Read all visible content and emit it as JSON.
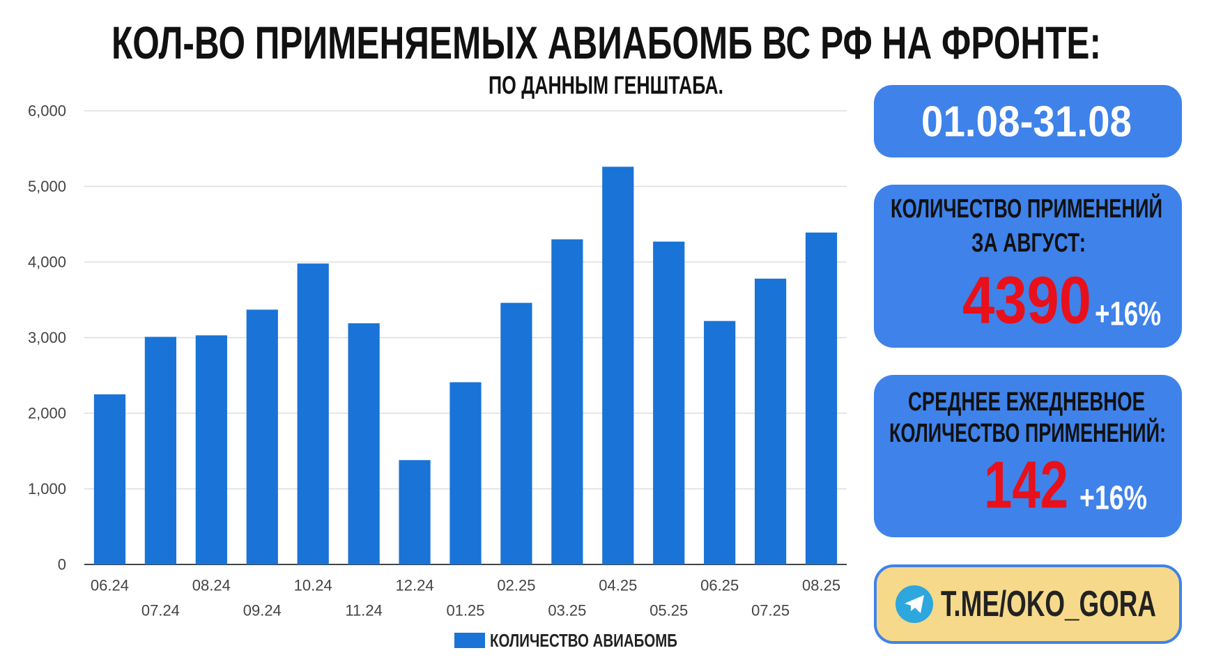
{
  "chart_data": {
    "type": "bar",
    "title": "КОЛ-ВО ПРИМЕНЯЕМЫХ АВИАБОМБ ВС РФ НА ФРОНТЕ:",
    "subtitle": "ПО ДАННЫМ ГЕНШТАБА.",
    "categories": [
      "06.24",
      "07.24",
      "08.24",
      "09.24",
      "10.24",
      "11.24",
      "12.24",
      "01.25",
      "02.25",
      "03.25",
      "04.25",
      "05.25",
      "06.25",
      "07.25",
      "08.25"
    ],
    "series": [
      {
        "name": "КОЛИЧЕСТВО АВИАБОМБ",
        "color": "#1a73d6",
        "values": [
          2250,
          3010,
          3030,
          3370,
          3980,
          3190,
          1380,
          2410,
          3460,
          4300,
          5260,
          4270,
          3220,
          3780,
          4390
        ]
      }
    ],
    "ylim": [
      0,
      6000
    ],
    "yticks": [
      0,
      {
        "value": 1000,
        "label": "1,000"
      },
      {
        "value": 2000,
        "label": "2,000"
      },
      {
        "value": 3000,
        "label": "3,000"
      },
      {
        "value": 4000,
        "label": "4,000"
      },
      {
        "value": 5000,
        "label": "5,000"
      },
      {
        "value": 6000,
        "label": "6,000"
      }
    ],
    "grid": true,
    "legend": "bottom"
  },
  "panels": {
    "period": "01.08-31.08",
    "total": {
      "line1": "КОЛИЧЕСТВО ПРИМЕНЕНИЙ",
      "line2": "ЗА АВГУСТ:",
      "value": "4390",
      "change": "+16%"
    },
    "daily": {
      "line1": "СРЕДНЕЕ ЕЖЕДНЕВНОЕ",
      "line2": "КОЛИЧЕСТВО ПРИМЕНЕНИЙ:",
      "value": "142",
      "change": "+16%"
    },
    "link": "T.ME/OKO_GORA"
  }
}
